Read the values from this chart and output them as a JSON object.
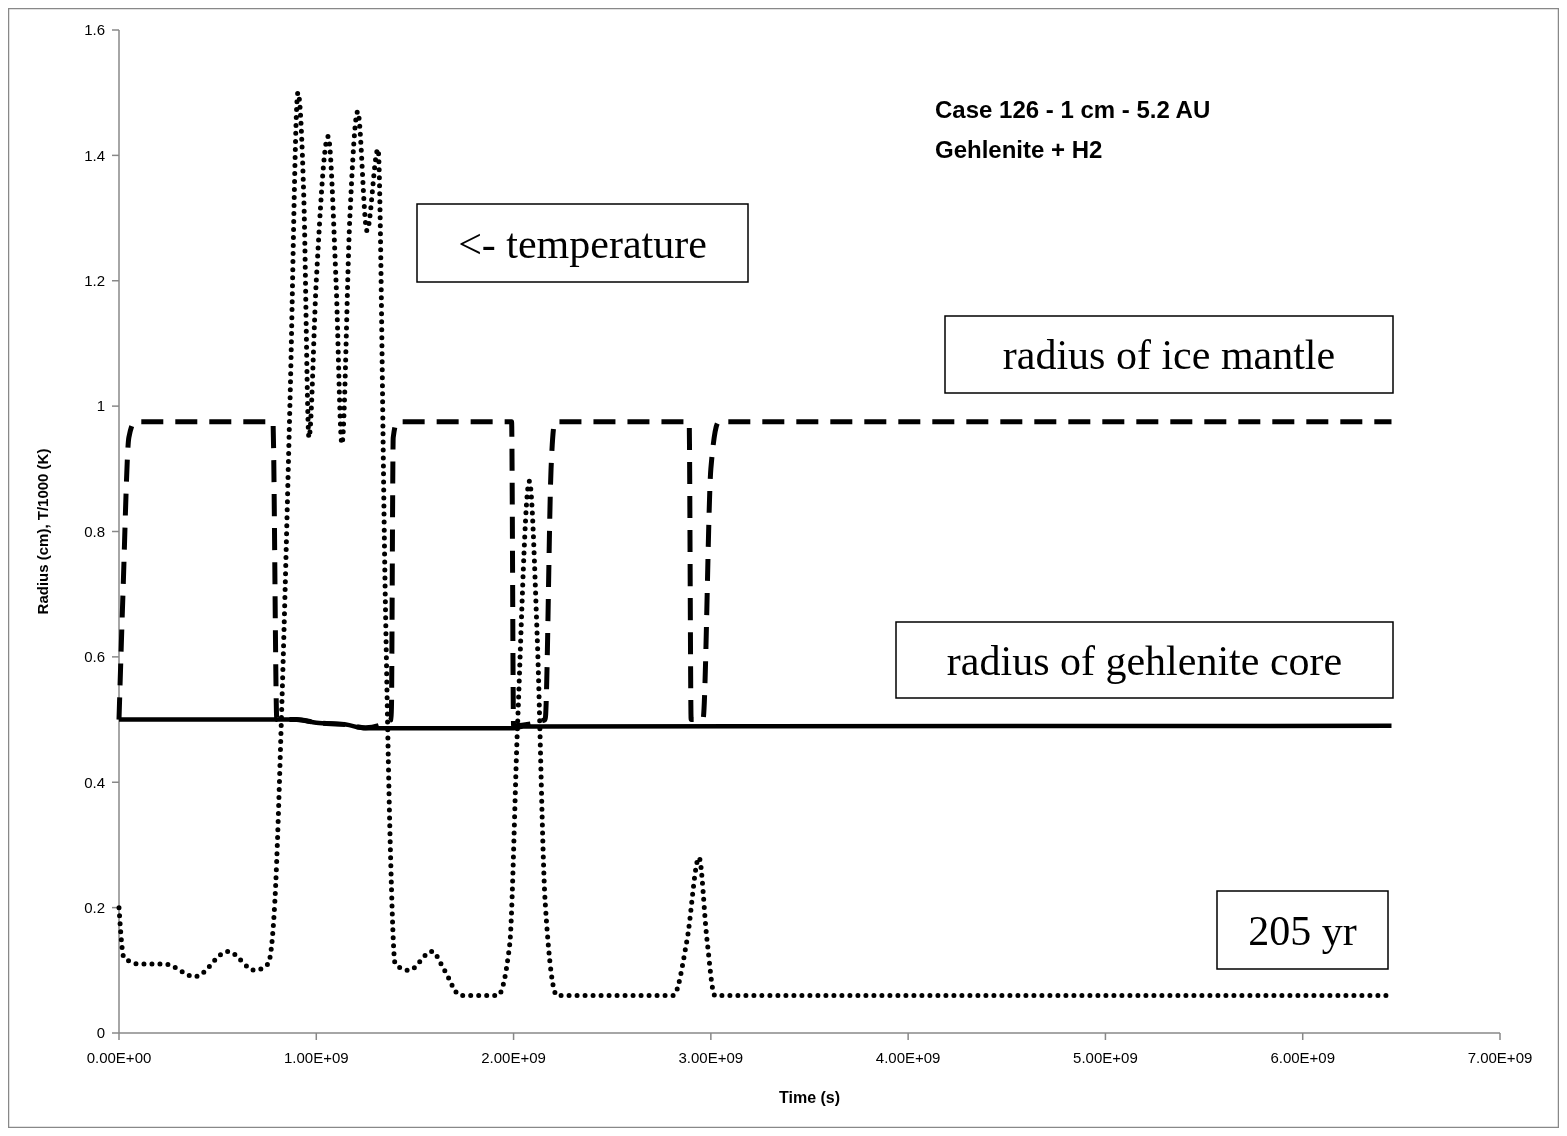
{
  "chart_data": {
    "type": "line",
    "title": "Case 126 - 1 cm - 5.2 AU",
    "subtitle": "Gehlenite + H2",
    "xlabel": "Time (s)",
    "ylabel": "Radius (cm), T/1000 (K)",
    "annotations": [
      "<- temperature",
      "radius of ice mantle",
      "radius of gehlenite core",
      "205 yr"
    ],
    "xlim": [
      0,
      7000000000
    ],
    "xticks": [
      {
        "value": 0,
        "label": "0.00E+00"
      },
      {
        "value": 1000000000,
        "label": "1.00E+09"
      },
      {
        "value": 2000000000,
        "label": "2.00E+09"
      },
      {
        "value": 3000000000,
        "label": "3.00E+09"
      },
      {
        "value": 4000000000,
        "label": "4.00E+09"
      },
      {
        "value": 5000000000,
        "label": "5.00E+09"
      },
      {
        "value": 6000000000,
        "label": "6.00E+09"
      },
      {
        "value": 7000000000,
        "label": "7.00E+09"
      }
    ],
    "ylim": [
      0,
      1.6
    ],
    "yticks": [
      0,
      0.2,
      0.4,
      0.6,
      0.8,
      1,
      1.2,
      1.4,
      1.6
    ],
    "grid": false,
    "series": [
      {
        "color": "#000000",
        "line_style": "dotted",
        "x": [
          0,
          25000000,
          106000000,
          233000000,
          385000000,
          552000000,
          689000000,
          755000000,
          790000000,
          826000000,
          867000000,
          907000000,
          937000000,
          963000000,
          1000000000,
          1060000000,
          1100000000,
          1130000000,
          1170000000,
          1210000000,
          1257000000,
          1313000000,
          1350000000,
          1375000000,
          1400000000,
          1470000000,
          1586000000,
          1650000000,
          1730000000,
          1920000000,
          1980000000,
          2020000000,
          2080000000,
          2120000000,
          2160000000,
          2220000000,
          2810000000,
          2880000000,
          2940000000,
          2980000000,
          3020000000,
          4550000000,
          6450000000
        ],
        "values": [
          0.2,
          0.12,
          0.11,
          0.11,
          0.09,
          0.13,
          0.1,
          0.11,
          0.21,
          0.53,
          1.01,
          1.5,
          1.33,
          0.95,
          1.2,
          1.43,
          1.2,
          0.94,
          1.3,
          1.47,
          1.28,
          1.41,
          0.69,
          0.3,
          0.11,
          0.1,
          0.13,
          0.1,
          0.06,
          0.06,
          0.14,
          0.49,
          0.88,
          0.63,
          0.21,
          0.06,
          0.06,
          0.15,
          0.28,
          0.15,
          0.06,
          0.06,
          0.06
        ]
      },
      {
        "color": "#000000",
        "line_style": "dashed",
        "x": [
          0,
          20000000,
          50000000,
          80000000,
          780000000,
          800000000,
          900000000,
          1000000000,
          1150000000,
          1250000000,
          1380000000,
          1390000000,
          1410000000,
          1990000000,
          2000000000,
          2160000000,
          2190000000,
          2210000000,
          2890000000,
          2900000000,
          2960000000,
          3000000000,
          3040000000,
          6450000000
        ],
        "values": [
          0.5,
          0.7,
          0.95,
          0.975,
          0.975,
          0.5,
          0.5,
          0.495,
          0.492,
          0.487,
          0.5,
          0.95,
          0.975,
          0.975,
          0.49,
          0.5,
          0.9,
          0.975,
          0.975,
          0.5,
          0.5,
          0.9,
          0.975,
          0.975
        ]
      },
      {
        "color": "#000000",
        "line_style": "solid",
        "x": [
          0,
          900000000,
          1000000000,
          1150000000,
          1250000000,
          2000000000,
          2050000000,
          6450000000
        ],
        "values": [
          0.5,
          0.5,
          0.495,
          0.492,
          0.486,
          0.486,
          0.489,
          0.49
        ]
      }
    ]
  }
}
